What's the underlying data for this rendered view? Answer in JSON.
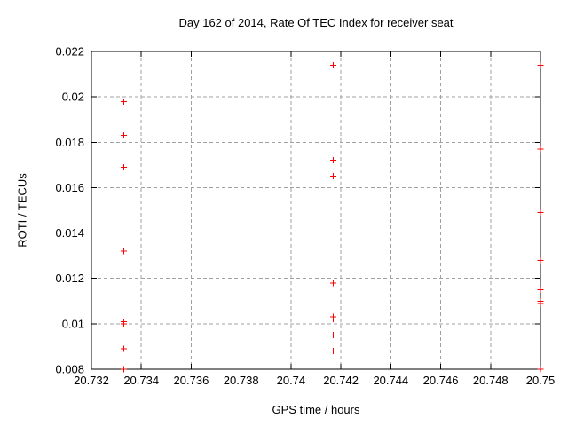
{
  "chart_data": {
    "type": "scatter",
    "title": "Day 162 of 2014, Rate Of TEC Index for receiver seat",
    "xlabel": "GPS time / hours",
    "ylabel": "ROTI / TECUs",
    "xlim": [
      20.732,
      20.75
    ],
    "ylim": [
      0.008,
      0.022
    ],
    "x_tick_values": [
      20.732,
      20.734,
      20.736,
      20.738,
      20.74,
      20.742,
      20.744,
      20.746,
      20.748,
      20.75
    ],
    "x_tick_labels": [
      "20.732",
      "20.734",
      "20.736",
      "20.738",
      "20.74",
      "20.742",
      "20.744",
      "20.746",
      "20.748",
      "20.75"
    ],
    "y_tick_values": [
      0.008,
      0.01,
      0.012,
      0.014,
      0.016,
      0.018,
      0.02,
      0.022
    ],
    "y_tick_labels": [
      "0.008",
      "0.01",
      "0.012",
      "0.014",
      "0.016",
      "0.018",
      "0.02",
      "0.022"
    ],
    "grid": true,
    "legend": "none",
    "marker_style": "plus",
    "marker_color": "#ff0000",
    "grid_color": "#a0a0a0",
    "axis_color": "#000000",
    "background_color": "#ffffff",
    "series": [
      {
        "name": "ROTI",
        "points": [
          {
            "x": 20.7333,
            "y": 0.0198
          },
          {
            "x": 20.7333,
            "y": 0.0183
          },
          {
            "x": 20.7333,
            "y": 0.0169
          },
          {
            "x": 20.7333,
            "y": 0.0132
          },
          {
            "x": 20.7333,
            "y": 0.0101
          },
          {
            "x": 20.7333,
            "y": 0.01
          },
          {
            "x": 20.7333,
            "y": 0.0089
          },
          {
            "x": 20.7333,
            "y": 0.008
          },
          {
            "x": 20.7417,
            "y": 0.0214
          },
          {
            "x": 20.7417,
            "y": 0.0172
          },
          {
            "x": 20.7417,
            "y": 0.0165
          },
          {
            "x": 20.7417,
            "y": 0.0118
          },
          {
            "x": 20.7417,
            "y": 0.0103
          },
          {
            "x": 20.7417,
            "y": 0.0102
          },
          {
            "x": 20.7417,
            "y": 0.0095
          },
          {
            "x": 20.7417,
            "y": 0.0088
          },
          {
            "x": 20.75,
            "y": 0.0214
          },
          {
            "x": 20.75,
            "y": 0.0177
          },
          {
            "x": 20.75,
            "y": 0.0149
          },
          {
            "x": 20.75,
            "y": 0.0128
          },
          {
            "x": 20.75,
            "y": 0.0115
          },
          {
            "x": 20.75,
            "y": 0.011
          },
          {
            "x": 20.75,
            "y": 0.0109
          },
          {
            "x": 20.75,
            "y": 0.008
          }
        ]
      }
    ]
  }
}
